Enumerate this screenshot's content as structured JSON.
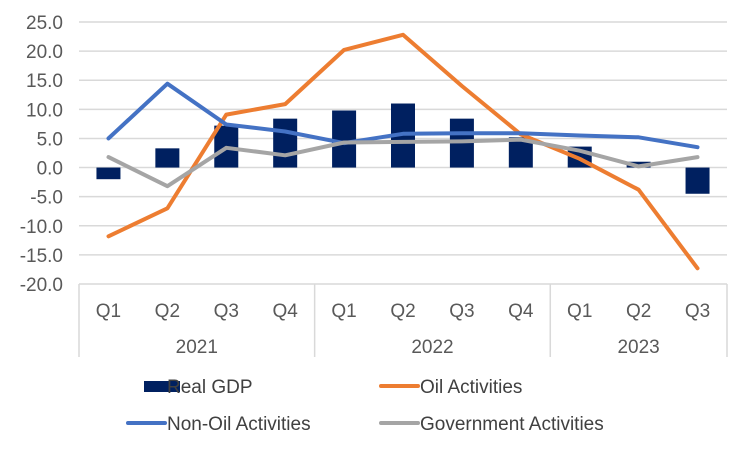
{
  "chart_data": {
    "type": "bar+line",
    "title": "",
    "xlabel": "",
    "ylabel": "",
    "ylim": [
      -20,
      25
    ],
    "ytick_step": 5,
    "ytick_labels": [
      "25.0",
      "20.0",
      "15.0",
      "10.0",
      "5.0",
      "0.0",
      "-5.0",
      "-10.0",
      "-15.0",
      "-20.0"
    ],
    "grid": true,
    "legend_position": "bottom",
    "categories": [
      "Q1",
      "Q2",
      "Q3",
      "Q4",
      "Q1",
      "Q2",
      "Q3",
      "Q4",
      "Q1",
      "Q2",
      "Q3"
    ],
    "groups": [
      {
        "label": "2021",
        "count": 4
      },
      {
        "label": "2022",
        "count": 4
      },
      {
        "label": "2023",
        "count": 3
      }
    ],
    "series": [
      {
        "name": "Real GDP",
        "type": "bar",
        "color": "#002060",
        "values": [
          -2.0,
          3.3,
          7.2,
          8.4,
          9.8,
          11.0,
          8.4,
          5.2,
          3.6,
          1.0,
          -4.5
        ]
      },
      {
        "name": "Oil Activities",
        "type": "line",
        "color": "#ED7D31",
        "values": [
          -11.8,
          -7.0,
          9.1,
          10.9,
          20.2,
          22.8,
          14.0,
          5.7,
          1.5,
          -3.8,
          -17.3
        ]
      },
      {
        "name": "Non-Oil Activities",
        "type": "line",
        "color": "#4472C4",
        "values": [
          5.0,
          14.4,
          7.4,
          6.2,
          4.2,
          5.8,
          5.9,
          5.9,
          5.5,
          5.2,
          3.5
        ]
      },
      {
        "name": "Government Activities",
        "type": "line",
        "color": "#A5A5A5",
        "values": [
          1.8,
          -3.2,
          3.4,
          2.1,
          4.3,
          4.4,
          4.5,
          4.8,
          2.9,
          0.2,
          1.8
        ]
      }
    ],
    "legend": [
      {
        "label": "Real GDP",
        "kind": "bar",
        "color": "#002060"
      },
      {
        "label": "Oil Activities",
        "kind": "line",
        "color": "#ED7D31"
      },
      {
        "label": "Non-Oil Activities",
        "kind": "line",
        "color": "#4472C4"
      },
      {
        "label": "Government Activities",
        "kind": "line",
        "color": "#A5A5A5"
      }
    ]
  }
}
